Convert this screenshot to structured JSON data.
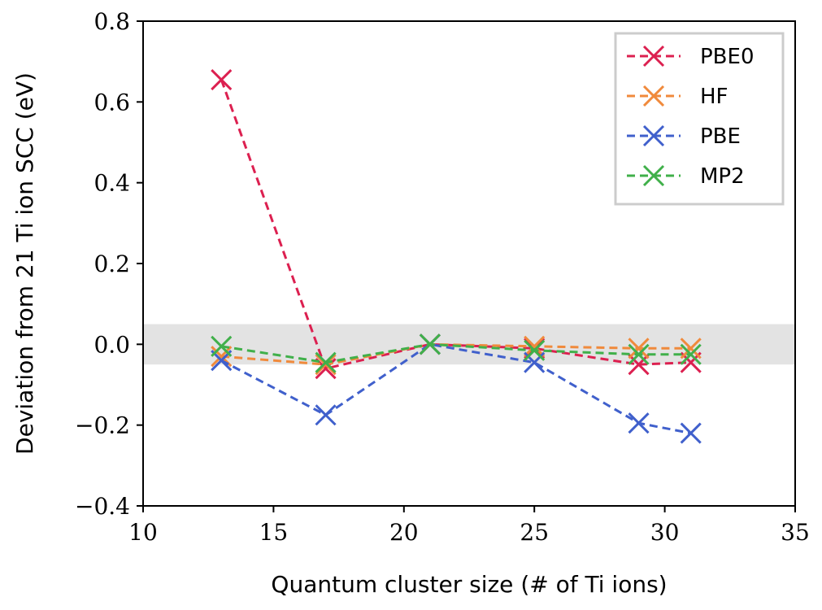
{
  "chart_data": {
    "type": "line",
    "title": "",
    "xlabel": "Quantum cluster size (# of Ti ions)",
    "ylabel": "Deviation from 21 Ti ion SCC (eV)",
    "xlim": [
      10,
      35
    ],
    "ylim": [
      -0.4,
      0.8
    ],
    "xticks": [
      10,
      15,
      20,
      25,
      30,
      35
    ],
    "xtick_labels": [
      "10",
      "15",
      "20",
      "25",
      "30",
      "35"
    ],
    "yticks": [
      -0.4,
      -0.2,
      0.0,
      0.2,
      0.4,
      0.6,
      0.8
    ],
    "ytick_labels": [
      "−0.4",
      "−0.2",
      "0.0",
      "0.2",
      "0.4",
      "0.6",
      "0.8"
    ],
    "grid": false,
    "legend_position": "top-right",
    "shaded_band": {
      "y_min": -0.05,
      "y_max": 0.05,
      "color": "#e3e3e3"
    },
    "x": [
      13,
      17,
      21,
      25,
      29,
      31
    ],
    "series": [
      {
        "name": "PBE0",
        "color": "#dc2050",
        "values": [
          0.655,
          -0.06,
          0.0,
          -0.01,
          -0.05,
          -0.045
        ]
      },
      {
        "name": "HF",
        "color": "#f08a3c",
        "values": [
          -0.03,
          -0.05,
          0.0,
          -0.005,
          -0.01,
          -0.01
        ]
      },
      {
        "name": "PBE",
        "color": "#4060cc",
        "values": [
          -0.04,
          -0.175,
          0.0,
          -0.045,
          -0.195,
          -0.22
        ]
      },
      {
        "name": "MP2",
        "color": "#40b04a",
        "values": [
          -0.005,
          -0.045,
          0.0,
          -0.015,
          -0.025,
          -0.025
        ]
      }
    ]
  }
}
